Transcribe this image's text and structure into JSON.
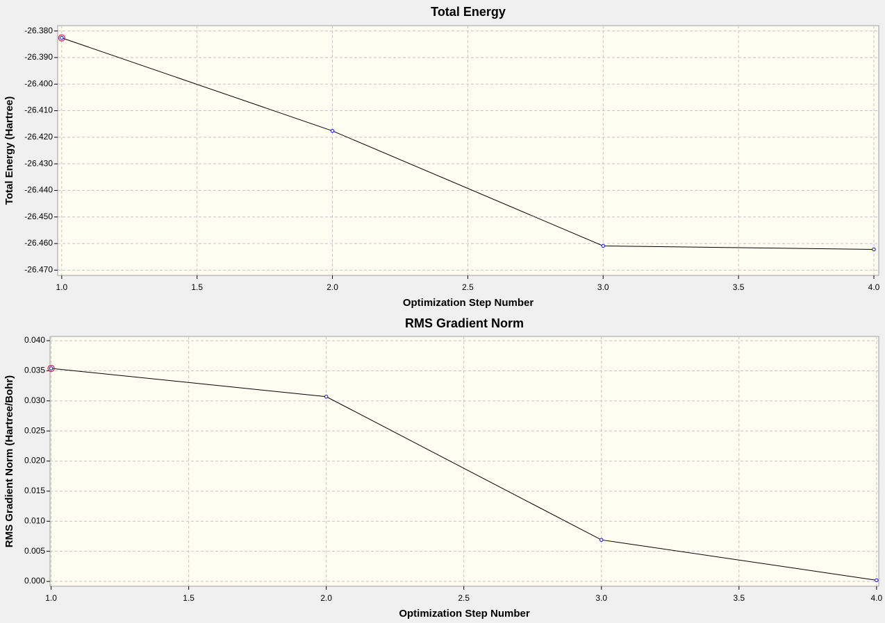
{
  "chart_data": [
    {
      "type": "line",
      "title": "Total Energy",
      "xlabel": "Optimization Step Number",
      "ylabel": "Total Energy (Hartree)",
      "x": [
        1,
        2,
        3,
        4
      ],
      "series": [
        {
          "color": "#000000",
          "marker_color": "#0000ff",
          "values": [
            -26.3826,
            -26.4176,
            -26.4609,
            -26.4622
          ]
        }
      ],
      "xlim": [
        0.985,
        4.018
      ],
      "xticks": [
        {
          "value": 1,
          "label": "1.0"
        },
        1.5,
        {
          "value": 2,
          "label": "2.0"
        },
        2.5,
        {
          "value": 3,
          "label": "3.0"
        },
        3.5,
        {
          "value": 4,
          "label": "4.0"
        }
      ],
      "ylim": [
        -26.472,
        -26.378
      ],
      "yticks": [
        {
          "value": -26.38,
          "label": "-26.380"
        },
        {
          "value": -26.39,
          "label": "-26.390"
        },
        {
          "value": -26.4,
          "label": "-26.400"
        },
        {
          "value": -26.41,
          "label": "-26.410"
        },
        {
          "value": -26.42,
          "label": "-26.420"
        },
        {
          "value": -26.43,
          "label": "-26.430"
        },
        {
          "value": -26.44,
          "label": "-26.440"
        },
        {
          "value": -26.45,
          "label": "-26.450"
        },
        {
          "value": -26.46,
          "label": "-26.460"
        },
        {
          "value": -26.47,
          "label": "-26.470"
        }
      ],
      "grid": true
    },
    {
      "type": "line",
      "title": "RMS Gradient Norm",
      "xlabel": "Optimization Step Number",
      "ylabel": "RMS Gradient Norm (Hartree/Bohr)",
      "x": [
        1,
        2,
        3,
        4
      ],
      "series": [
        {
          "color": "#000000",
          "marker_color": "#0000ff",
          "values": [
            0.0354,
            0.0307,
            0.0069,
            0.0002
          ]
        }
      ],
      "xlim": [
        0.996,
        4.008
      ],
      "xticks": [
        {
          "value": 1,
          "label": "1.0"
        },
        1.5,
        {
          "value": 2,
          "label": "2.0"
        },
        2.5,
        {
          "value": 3,
          "label": "3.0"
        },
        3.5,
        {
          "value": 4,
          "label": "4.0"
        }
      ],
      "ylim": [
        -0.0008,
        0.0407
      ],
      "yticks": [
        {
          "value": 0,
          "label": "0.000"
        },
        0.005,
        {
          "value": 0.01,
          "label": "0.010"
        },
        0.015,
        {
          "value": 0.02,
          "label": "0.020"
        },
        0.025,
        {
          "value": 0.03,
          "label": "0.030"
        },
        0.035,
        {
          "value": 0.04,
          "label": "0.040"
        }
      ],
      "grid": true
    }
  ]
}
